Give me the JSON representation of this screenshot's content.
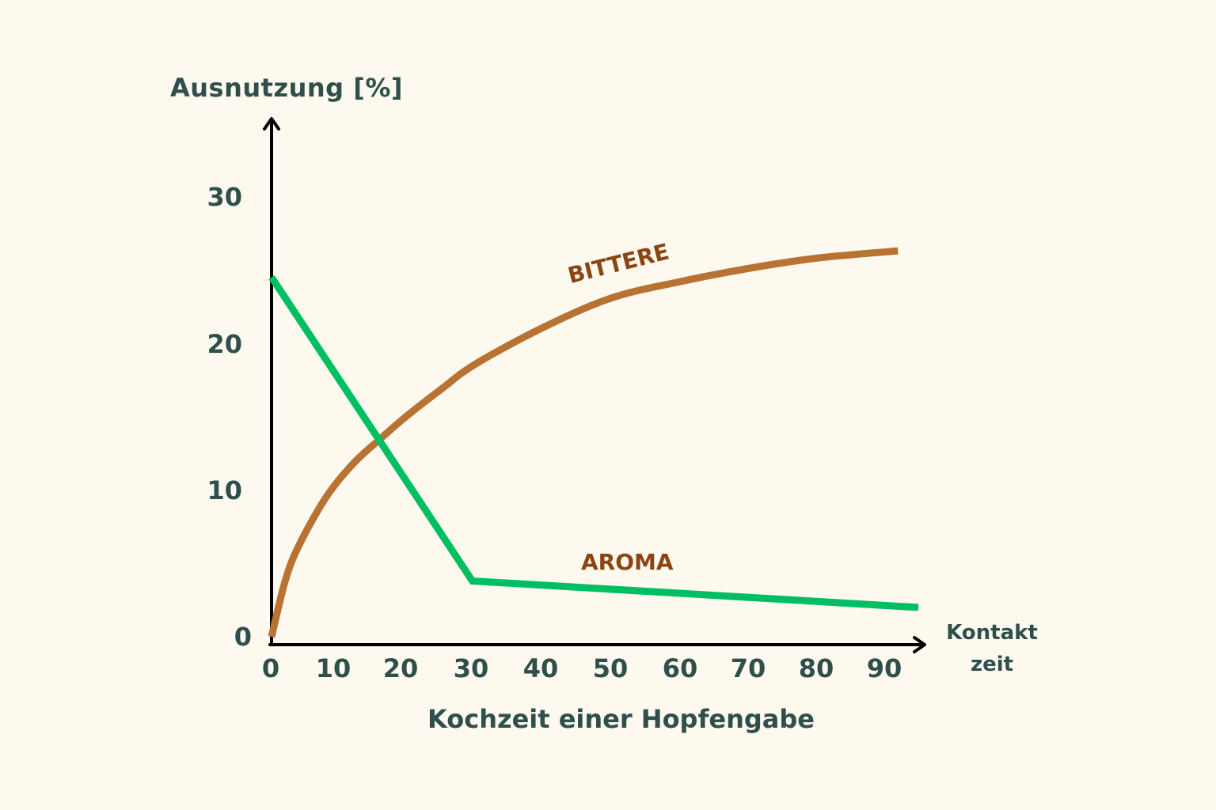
{
  "chart_data": {
    "type": "line",
    "title": "",
    "ylabel": "Ausnutzung [%]",
    "xlabel": "Kochzeit einer Hopfengabe",
    "x_axis_end_label": [
      "Kontakt",
      "zeit"
    ],
    "xlim": [
      0,
      95
    ],
    "ylim": [
      0,
      33
    ],
    "x_ticks": [
      0,
      10,
      20,
      30,
      40,
      50,
      60,
      70,
      80,
      90
    ],
    "y_ticks": [
      0,
      10,
      20,
      30
    ],
    "grid": false,
    "legend": "inline labels",
    "series": [
      {
        "name": "BITTERE",
        "color": "#b87333",
        "label_color": "#8b4513",
        "x": [
          0,
          2,
          4,
          8,
          12,
          16,
          20,
          25,
          30,
          40,
          50,
          60,
          70,
          80,
          92
        ],
        "y": [
          0,
          3.8,
          6.2,
          9.5,
          11.8,
          13.5,
          15.1,
          16.9,
          18.6,
          21.1,
          23.1,
          24.2,
          25.1,
          25.8,
          26.3
        ]
      },
      {
        "name": "AROMA",
        "color": "#00bf63",
        "label_color": "#8b4513",
        "x": [
          0,
          29.5,
          95
        ],
        "y": [
          24.5,
          3.8,
          2.0
        ]
      }
    ]
  },
  "labels": {
    "ylabel": "Ausnutzung [%]",
    "xlabel": "Kochzeit einer Hopfengabe",
    "xunit_line1": "Kontakt",
    "xunit_line2": "zeit",
    "bitter": "BITTERE",
    "aroma": "AROMA",
    "yticks": [
      "0",
      "10",
      "20",
      "30"
    ],
    "xticks": [
      "0",
      "10",
      "20",
      "30",
      "40",
      "50",
      "60",
      "70",
      "80",
      "90"
    ]
  },
  "colors": {
    "background": "#fdf9ef",
    "axis": "#000000",
    "text": "#2f4f4c",
    "bitter_line": "#b87333",
    "aroma_line": "#00bf63",
    "series_label": "#8b4513"
  }
}
